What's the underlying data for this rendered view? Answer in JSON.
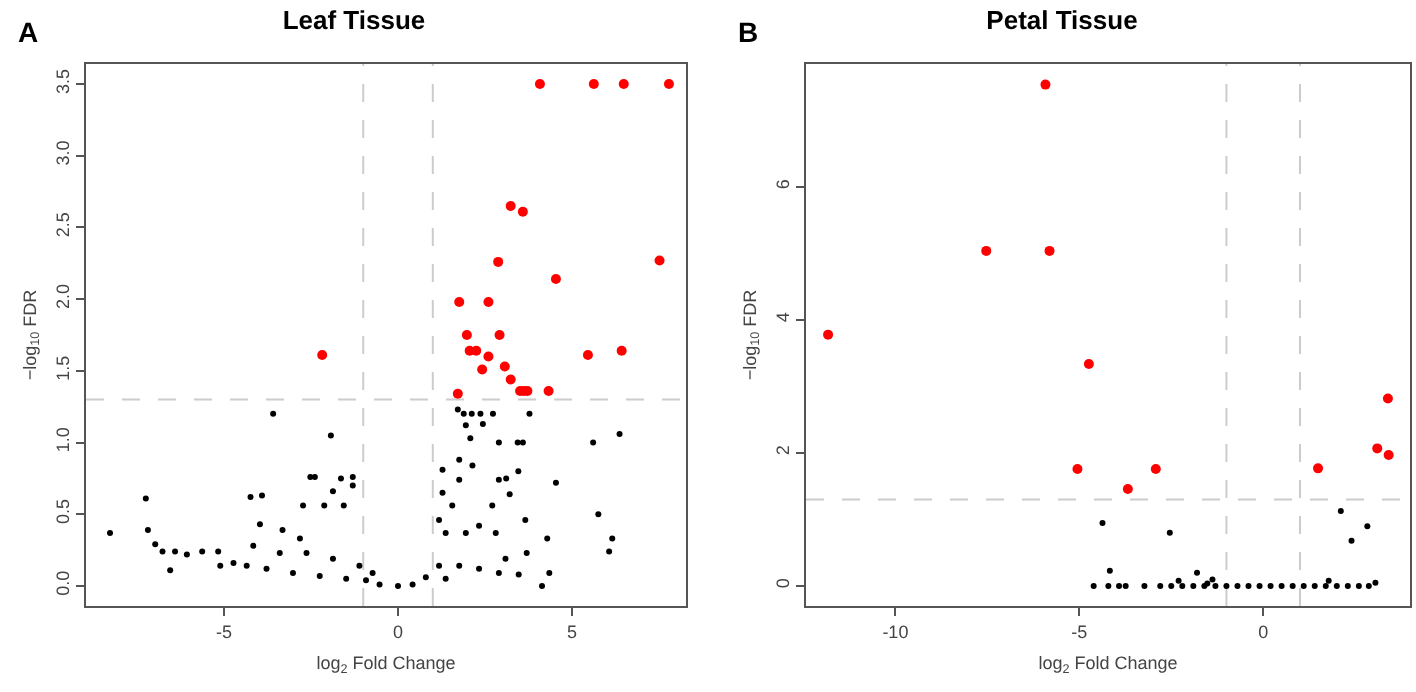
{
  "chart_data": [
    {
      "type": "scatter",
      "title": "Leaf Tissue",
      "annotations": [
        "A"
      ],
      "xlabel": "log$_{2}$ Fold Change",
      "ylabel": "−log$_{10}$ FDR",
      "xlim": [
        -8.97,
        8.28
      ],
      "xticks": [
        -5,
        0,
        5
      ],
      "ylim": [
        -0.14,
        3.64
      ],
      "yticks": [
        {
          "value": 0,
          "label": "0.0"
        },
        0.5,
        {
          "value": 1,
          "label": "1.0"
        },
        1.5,
        {
          "value": 2,
          "label": "2.0"
        },
        2.5,
        {
          "value": 3,
          "label": "3.0"
        },
        3.5
      ],
      "marker": "circle",
      "ref_lines": [
        {
          "axis": "x",
          "value": -1,
          "color": "#cccccc",
          "line_style": "dashed"
        },
        {
          "axis": "x",
          "value": 1,
          "color": "#cccccc",
          "line_style": "dashed"
        },
        {
          "axis": "y",
          "value": 1.3,
          "color": "#cccccc",
          "line_style": "dashed"
        }
      ],
      "series": [
        {
          "color": "#000000",
          "x": [
            -8.28,
            -7.25,
            -7.19,
            -6.98,
            -6.77,
            -6.55,
            -6.41,
            -6.07,
            -5.63,
            -5.17,
            -3.59,
            -1.93,
            -4.24,
            -3.91,
            -2.52,
            -2.39,
            -1.64,
            -1.3,
            -1.3,
            -2.12,
            -2.73,
            -1.87,
            -1.56,
            -3.97,
            -3.32,
            -2.82,
            -4.73,
            -4.35,
            -3.78,
            -3.02,
            -2.25,
            -1.49,
            -0.92,
            -0.53,
            0,
            0.42,
            0.8,
            1.18,
            1.37,
            1.28,
            1.72,
            1.89,
            2.12,
            2.37,
            2.73,
            1.95,
            2.44,
            2.08,
            2.9,
            3.44,
            3.59,
            3.78,
            5.61,
            6.37,
            3.46,
            4.54,
            3.11,
            3.21,
            2.14,
            1.76,
            2.71,
            3.66,
            3.7,
            5.76,
            6.16,
            6.07,
            4.29,
            4.35,
            4.14,
            3.47,
            2.9,
            2.33,
            1.76,
            1.37,
            1.95,
            2.33,
            2.81,
            1.18,
            1.56,
            1.76,
            1.28,
            2.9,
            3.09,
            -0.73,
            -1.11,
            -1.87,
            -2.63,
            -3.4,
            -4.16,
            -5.11
          ],
          "values": [
            0.37,
            0.61,
            0.39,
            0.29,
            0.24,
            0.11,
            0.24,
            0.22,
            0.24,
            0.24,
            1.2,
            1.05,
            0.62,
            0.63,
            0.76,
            0.76,
            0.75,
            0.76,
            0.7,
            0.56,
            0.56,
            0.66,
            0.56,
            0.43,
            0.39,
            0.33,
            0.16,
            0.14,
            0.12,
            0.09,
            0.07,
            0.05,
            0.04,
            0.01,
            0,
            0.01,
            0.06,
            0.14,
            0.37,
            0.81,
            1.23,
            1.2,
            1.2,
            1.2,
            1.2,
            1.12,
            1.13,
            1.03,
            1.0,
            1.0,
            1.0,
            1.2,
            1.0,
            1.06,
            0.8,
            0.72,
            0.75,
            0.64,
            0.84,
            0.74,
            0.56,
            0.46,
            0.23,
            0.5,
            0.33,
            0.24,
            0.33,
            0.09,
            0,
            0.08,
            0.09,
            0.12,
            0.14,
            0.05,
            0.37,
            0.42,
            0.37,
            0.46,
            0.56,
            0.88,
            0.65,
            0.74,
            0.19,
            0.09,
            0.14,
            0.19,
            0.23,
            0.23,
            0.28,
            0.14
          ]
        },
        {
          "color": "#ff0000",
          "x": [
            4.08,
            5.63,
            6.49,
            7.79,
            3.24,
            3.59,
            2.88,
            7.52,
            4.54,
            1.76,
            2.6,
            1.98,
            2.92,
            2.06,
            2.25,
            2.6,
            5.46,
            6.43,
            -2.18,
            2.42,
            3.07,
            3.24,
            3.51,
            3.61,
            3.72,
            4.33,
            1.72
          ],
          "values": [
            3.5,
            3.5,
            3.5,
            3.5,
            2.65,
            2.61,
            2.26,
            2.27,
            2.14,
            1.98,
            1.98,
            1.75,
            1.75,
            1.64,
            1.64,
            1.6,
            1.61,
            1.64,
            1.61,
            1.51,
            1.53,
            1.44,
            1.36,
            1.36,
            1.36,
            1.36,
            1.34
          ]
        }
      ]
    },
    {
      "type": "scatter",
      "title": "Petal Tissue",
      "annotations": [
        "B"
      ],
      "xlabel": "log$_{2}$ Fold Change",
      "ylabel": "−log$_{10}$ FDR",
      "xlim": [
        -12.43,
        3.99
      ],
      "xticks": [
        -10,
        -5,
        0
      ],
      "ylim": [
        -0.3,
        7.85
      ],
      "yticks": [
        0,
        2,
        4,
        6
      ],
      "marker": "circle",
      "ref_lines": [
        {
          "axis": "x",
          "value": -1,
          "color": "#cccccc",
          "line_style": "dashed"
        },
        {
          "axis": "x",
          "value": 1,
          "color": "#cccccc",
          "line_style": "dashed"
        },
        {
          "axis": "y",
          "value": 1.3,
          "color": "#cccccc",
          "line_style": "dashed"
        }
      ],
      "series": [
        {
          "color": "#000000",
          "x": [
            -4.37,
            -2.54,
            -4.17,
            -1.8,
            2.11,
            2.83,
            2.4,
            3.05,
            -4.61,
            -4.21,
            -3.92,
            -3.74,
            -3.23,
            -2.3,
            -1.38,
            -1.52,
            1.78,
            2.87,
            -2.8,
            -2.5,
            -2.2,
            -1.9,
            -1.6,
            -1.3,
            -1.0,
            -0.7,
            -0.4,
            -0.1,
            0.2,
            0.5,
            0.8,
            1.1,
            1.4,
            1.7,
            2.0,
            2.3,
            2.6
          ],
          "values": [
            0.95,
            0.8,
            0.23,
            0.2,
            1.13,
            0.9,
            0.68,
            0.05,
            0,
            0,
            0,
            0,
            0,
            0.08,
            0.1,
            0.04,
            0.08,
            0,
            0,
            0,
            0,
            0,
            0,
            0,
            0,
            0,
            0,
            0,
            0,
            0,
            0,
            0,
            0,
            0,
            0,
            0,
            0
          ]
        },
        {
          "color": "#ff0000",
          "x": [
            -11.83,
            -5.92,
            -7.53,
            -5.81,
            -4.74,
            -5.05,
            -2.92,
            -3.68,
            1.49,
            3.39,
            3.1,
            3.41
          ],
          "values": [
            3.78,
            7.54,
            5.04,
            5.04,
            3.34,
            1.76,
            1.76,
            1.46,
            1.77,
            2.82,
            2.07,
            1.97
          ]
        }
      ]
    }
  ]
}
